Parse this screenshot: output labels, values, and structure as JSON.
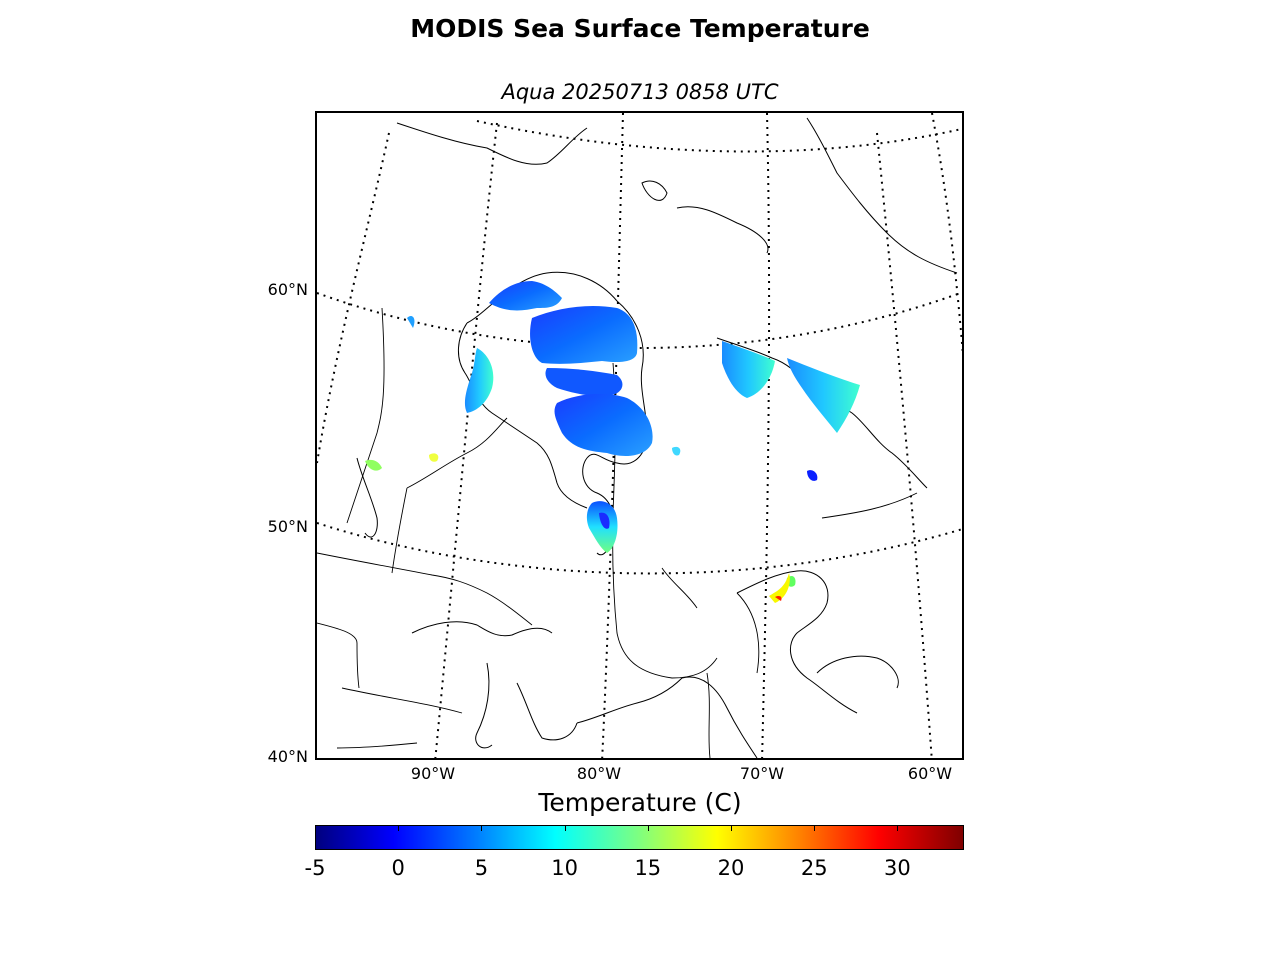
{
  "title": "MODIS Sea Surface Temperature",
  "subtitle": "Aqua 20250713 0858 UTC",
  "map": {
    "lat_labels": [
      "60°N",
      "50°N",
      "40°N"
    ],
    "lon_labels": [
      "90°W",
      "80°W",
      "70°W",
      "60°W"
    ]
  },
  "colorbar": {
    "label": "Temperature (C)",
    "min": -5,
    "max": 34,
    "ticks": [
      "-5",
      "0",
      "5",
      "10",
      "15",
      "20",
      "25",
      "30"
    ],
    "colormap": "jet"
  }
}
